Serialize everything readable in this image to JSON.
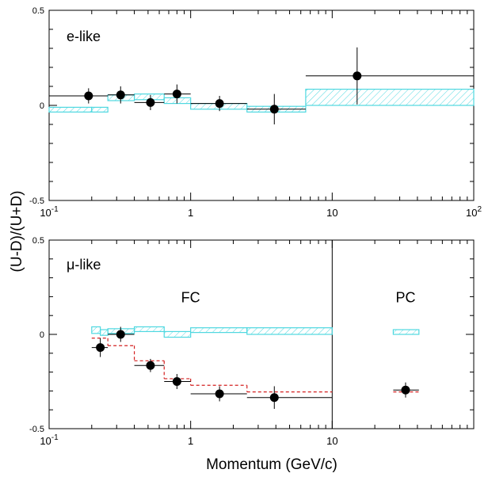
{
  "figure": {
    "ylabel": "(U-D)/(U+D)",
    "xlabel": "Momentum (GeV/c)"
  },
  "colors": {
    "mc_box": "#4fd8e0",
    "hatch": "#4fd8e0",
    "oscillation": "#d42020",
    "data": "#000000",
    "frame": "#000000"
  },
  "chart_data": [
    {
      "type": "scatter",
      "panel": "top",
      "label": "e-like",
      "xscale": "log",
      "xlim": [
        0.1,
        100
      ],
      "ylim": [
        -0.5,
        0.5
      ],
      "yticks": [
        "0.5",
        "0",
        "-0.5"
      ],
      "xticks": [
        {
          "value": 0.1,
          "base": "10",
          "exp": "-1"
        },
        {
          "value": 1,
          "base": "1",
          "exp": ""
        },
        {
          "value": 10,
          "base": "10",
          "exp": ""
        },
        {
          "value": 100,
          "base": "10",
          "exp": "2"
        }
      ],
      "data": {
        "x": [
          0.19,
          0.32,
          0.52,
          0.8,
          1.6,
          3.9,
          15
        ],
        "y": [
          0.05,
          0.055,
          0.015,
          0.06,
          0.01,
          -0.02,
          0.155
        ],
        "xerr": [
          [
            0.1,
            0.26
          ],
          [
            0.26,
            0.4
          ],
          [
            0.4,
            0.65
          ],
          [
            0.65,
            1.0
          ],
          [
            1.0,
            2.5
          ],
          [
            2.5,
            6.5
          ],
          [
            6.5,
            100
          ]
        ],
        "yerr": [
          0.04,
          0.045,
          0.04,
          0.05,
          0.04,
          0.08,
          0.15
        ]
      },
      "mc_no_oscillation": [
        {
          "x": [
            0.1,
            0.2
          ],
          "y": [
            -0.035,
            -0.01
          ]
        },
        {
          "x": [
            0.2,
            0.26
          ],
          "y": [
            -0.035,
            -0.01
          ]
        },
        {
          "x": [
            0.26,
            0.4
          ],
          "y": [
            0.025,
            0.055
          ]
        },
        {
          "x": [
            0.4,
            0.65
          ],
          "y": [
            0.03,
            0.06
          ]
        },
        {
          "x": [
            0.65,
            1.0
          ],
          "y": [
            0.01,
            0.04
          ]
        },
        {
          "x": [
            1.0,
            2.5
          ],
          "y": [
            -0.02,
            0.01
          ]
        },
        {
          "x": [
            2.5,
            6.5
          ],
          "y": [
            -0.035,
            -0.005
          ]
        },
        {
          "x": [
            6.5,
            100
          ],
          "y": [
            0.0,
            0.085
          ]
        }
      ]
    },
    {
      "type": "scatter",
      "panel": "bottom",
      "label": "μ-like",
      "xscale": "log",
      "xlim": [
        0.1,
        100
      ],
      "ylim": [
        -0.5,
        0.5
      ],
      "yticks": [
        "0.5",
        "0",
        "-0.5"
      ],
      "xticks": [
        {
          "value": 0.1,
          "base": "10",
          "exp": "-1"
        },
        {
          "value": 1,
          "base": "1",
          "exp": ""
        },
        {
          "value": 10,
          "base": "10",
          "exp": ""
        }
      ],
      "divider_x": 10,
      "regions": [
        {
          "label": "FC",
          "x": 1.0,
          "y": 0.17
        },
        {
          "label": "PC",
          "x": 33,
          "y": 0.17
        }
      ],
      "data": {
        "x": [
          0.23,
          0.32,
          0.52,
          0.8,
          1.6,
          3.9,
          33
        ],
        "y": [
          -0.07,
          0.0,
          -0.165,
          -0.25,
          -0.315,
          -0.335,
          -0.295
        ],
        "xerr": [
          [
            0.2,
            0.26
          ],
          [
            0.26,
            0.4
          ],
          [
            0.4,
            0.65
          ],
          [
            0.65,
            1.0
          ],
          [
            1.0,
            2.5
          ],
          [
            2.5,
            10
          ],
          [
            27,
            41
          ]
        ],
        "yerr": [
          0.05,
          0.04,
          0.035,
          0.04,
          0.04,
          0.06,
          0.04
        ]
      },
      "mc_no_oscillation": [
        {
          "x": [
            0.2,
            0.23
          ],
          "y": [
            0.005,
            0.04
          ]
        },
        {
          "x": [
            0.23,
            0.26
          ],
          "y": [
            -0.005,
            0.025
          ]
        },
        {
          "x": [
            0.26,
            0.4
          ],
          "y": [
            0.005,
            0.03
          ]
        },
        {
          "x": [
            0.4,
            0.65
          ],
          "y": [
            0.015,
            0.04
          ]
        },
        {
          "x": [
            0.65,
            1.0
          ],
          "y": [
            -0.015,
            0.015
          ]
        },
        {
          "x": [
            1.0,
            2.5
          ],
          "y": [
            0.01,
            0.035
          ]
        },
        {
          "x": [
            2.5,
            10
          ],
          "y": [
            0.0,
            0.035
          ]
        },
        {
          "x": [
            27,
            41
          ],
          "y": [
            0.0,
            0.025
          ]
        }
      ],
      "oscillation_prediction": [
        {
          "x": [
            0.2,
            0.26
          ],
          "y": -0.02
        },
        {
          "x": [
            0.26,
            0.4
          ],
          "y": -0.06
        },
        {
          "x": [
            0.4,
            0.65
          ],
          "y": -0.14
        },
        {
          "x": [
            0.65,
            1.0
          ],
          "y": -0.235
        },
        {
          "x": [
            1.0,
            2.5
          ],
          "y": -0.27
        },
        {
          "x": [
            2.5,
            10
          ],
          "y": -0.305
        },
        {
          "x": [
            27,
            41
          ],
          "y": -0.305
        }
      ]
    }
  ]
}
